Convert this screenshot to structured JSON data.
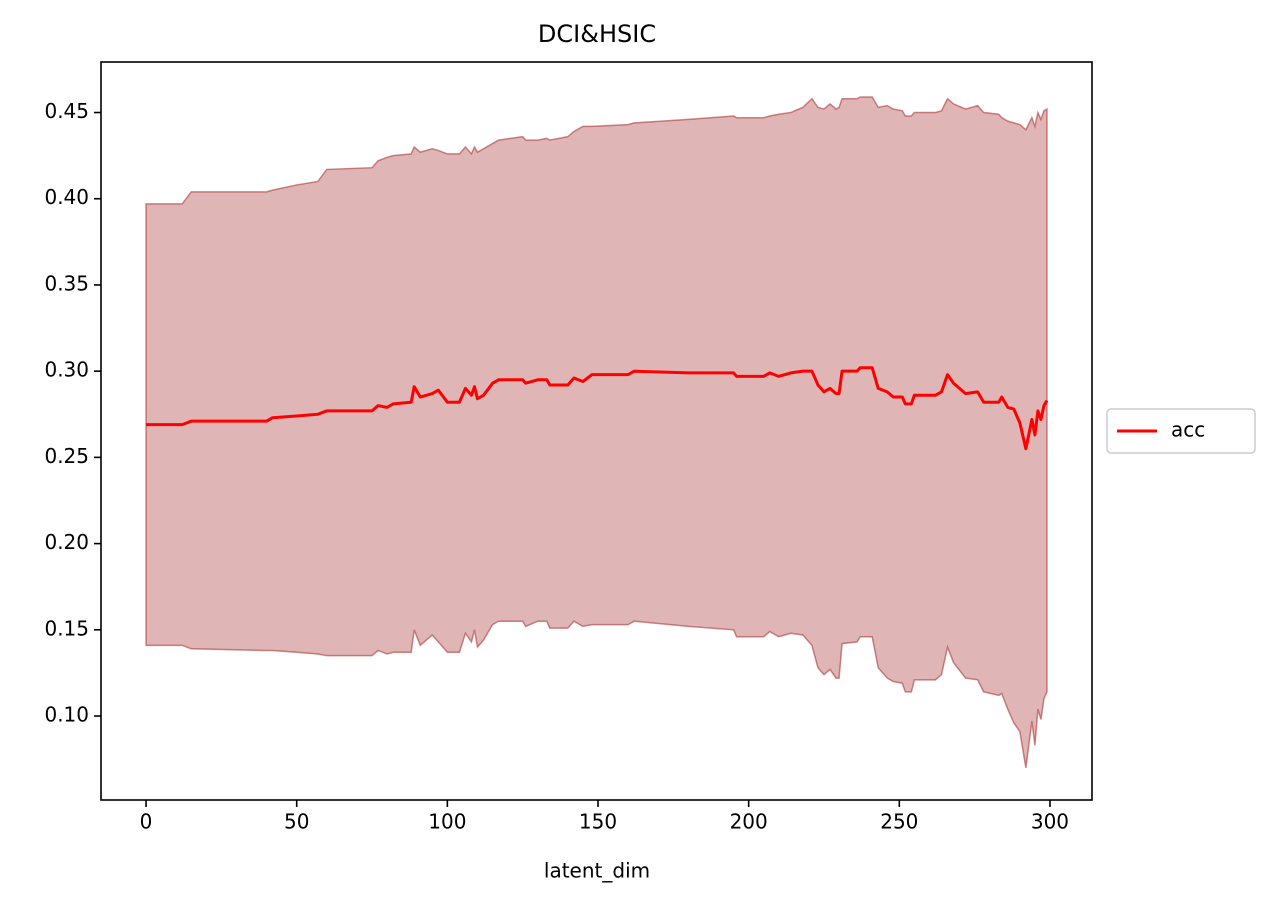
{
  "chart_data": {
    "type": "line",
    "title": "DCI&HSIC",
    "x_label": "latent_dim",
    "x": [
      0,
      12,
      15,
      40,
      42,
      50,
      57,
      60,
      75,
      77,
      80,
      82,
      88,
      89,
      91,
      95,
      97,
      100,
      104,
      106,
      108,
      109,
      110,
      112,
      115,
      117,
      125,
      126,
      130,
      133,
      134,
      140,
      142,
      145,
      148,
      160,
      162,
      180,
      195,
      196,
      205,
      207,
      210,
      214,
      218,
      221,
      223,
      225,
      227,
      229,
      230,
      231,
      236,
      237,
      241,
      243,
      246,
      248,
      251,
      252,
      254,
      255,
      262,
      264,
      266,
      268,
      272,
      276,
      278,
      283,
      284,
      286,
      288,
      290,
      292,
      294,
      295,
      296,
      297,
      298,
      299
    ],
    "series": [
      {
        "name": "acc",
        "color": "#ff0000",
        "values": [
          0.269,
          0.269,
          0.271,
          0.271,
          0.273,
          0.274,
          0.275,
          0.277,
          0.277,
          0.28,
          0.279,
          0.281,
          0.282,
          0.291,
          0.285,
          0.287,
          0.289,
          0.282,
          0.282,
          0.29,
          0.286,
          0.291,
          0.284,
          0.286,
          0.293,
          0.295,
          0.295,
          0.293,
          0.295,
          0.295,
          0.292,
          0.292,
          0.296,
          0.294,
          0.298,
          0.298,
          0.3,
          0.299,
          0.299,
          0.297,
          0.297,
          0.299,
          0.297,
          0.299,
          0.3,
          0.3,
          0.292,
          0.288,
          0.29,
          0.287,
          0.287,
          0.3,
          0.3,
          0.302,
          0.302,
          0.29,
          0.288,
          0.285,
          0.285,
          0.281,
          0.281,
          0.286,
          0.286,
          0.288,
          0.298,
          0.293,
          0.287,
          0.288,
          0.282,
          0.282,
          0.285,
          0.279,
          0.278,
          0.27,
          0.255,
          0.272,
          0.263,
          0.277,
          0.272,
          0.28,
          0.283
        ],
        "band": {
          "color": "#a52a2a",
          "alpha": 0.35,
          "upper": [
            0.397,
            0.397,
            0.404,
            0.404,
            0.405,
            0.408,
            0.41,
            0.417,
            0.418,
            0.422,
            0.424,
            0.425,
            0.426,
            0.43,
            0.427,
            0.429,
            0.428,
            0.426,
            0.426,
            0.43,
            0.426,
            0.43,
            0.427,
            0.429,
            0.432,
            0.434,
            0.436,
            0.434,
            0.434,
            0.435,
            0.434,
            0.436,
            0.439,
            0.442,
            0.442,
            0.443,
            0.444,
            0.446,
            0.448,
            0.447,
            0.447,
            0.448,
            0.449,
            0.45,
            0.453,
            0.458,
            0.453,
            0.452,
            0.455,
            0.452,
            0.453,
            0.458,
            0.458,
            0.459,
            0.459,
            0.453,
            0.454,
            0.452,
            0.451,
            0.448,
            0.448,
            0.45,
            0.45,
            0.451,
            0.458,
            0.455,
            0.452,
            0.454,
            0.45,
            0.449,
            0.447,
            0.445,
            0.444,
            0.443,
            0.44,
            0.447,
            0.442,
            0.45,
            0.446,
            0.451,
            0.452
          ],
          "lower": [
            0.141,
            0.141,
            0.139,
            0.138,
            0.138,
            0.137,
            0.136,
            0.135,
            0.135,
            0.138,
            0.136,
            0.137,
            0.137,
            0.15,
            0.141,
            0.147,
            0.143,
            0.137,
            0.137,
            0.148,
            0.143,
            0.15,
            0.14,
            0.144,
            0.153,
            0.155,
            0.155,
            0.152,
            0.155,
            0.155,
            0.151,
            0.151,
            0.155,
            0.152,
            0.153,
            0.153,
            0.155,
            0.152,
            0.15,
            0.146,
            0.146,
            0.149,
            0.146,
            0.148,
            0.147,
            0.141,
            0.128,
            0.124,
            0.127,
            0.122,
            0.122,
            0.142,
            0.143,
            0.146,
            0.146,
            0.128,
            0.122,
            0.12,
            0.119,
            0.114,
            0.114,
            0.121,
            0.121,
            0.124,
            0.14,
            0.131,
            0.122,
            0.121,
            0.114,
            0.112,
            0.113,
            0.104,
            0.096,
            0.091,
            0.07,
            0.097,
            0.083,
            0.104,
            0.098,
            0.11,
            0.114
          ]
        }
      }
    ],
    "xlim": [
      -14.95,
      313.95
    ],
    "xticks": [
      0,
      50,
      100,
      150,
      200,
      250,
      300
    ],
    "ylim": [
      0.0513,
      0.4793
    ],
    "yticks": [
      {
        "value": 0.1,
        "label": "0.10"
      },
      0.15,
      {
        "value": 0.2,
        "label": "0.20"
      },
      0.25,
      {
        "value": 0.3,
        "label": "0.30"
      },
      0.35,
      {
        "value": 0.4,
        "label": "0.40"
      },
      0.45
    ],
    "grid": false,
    "legend": "center right outside"
  }
}
